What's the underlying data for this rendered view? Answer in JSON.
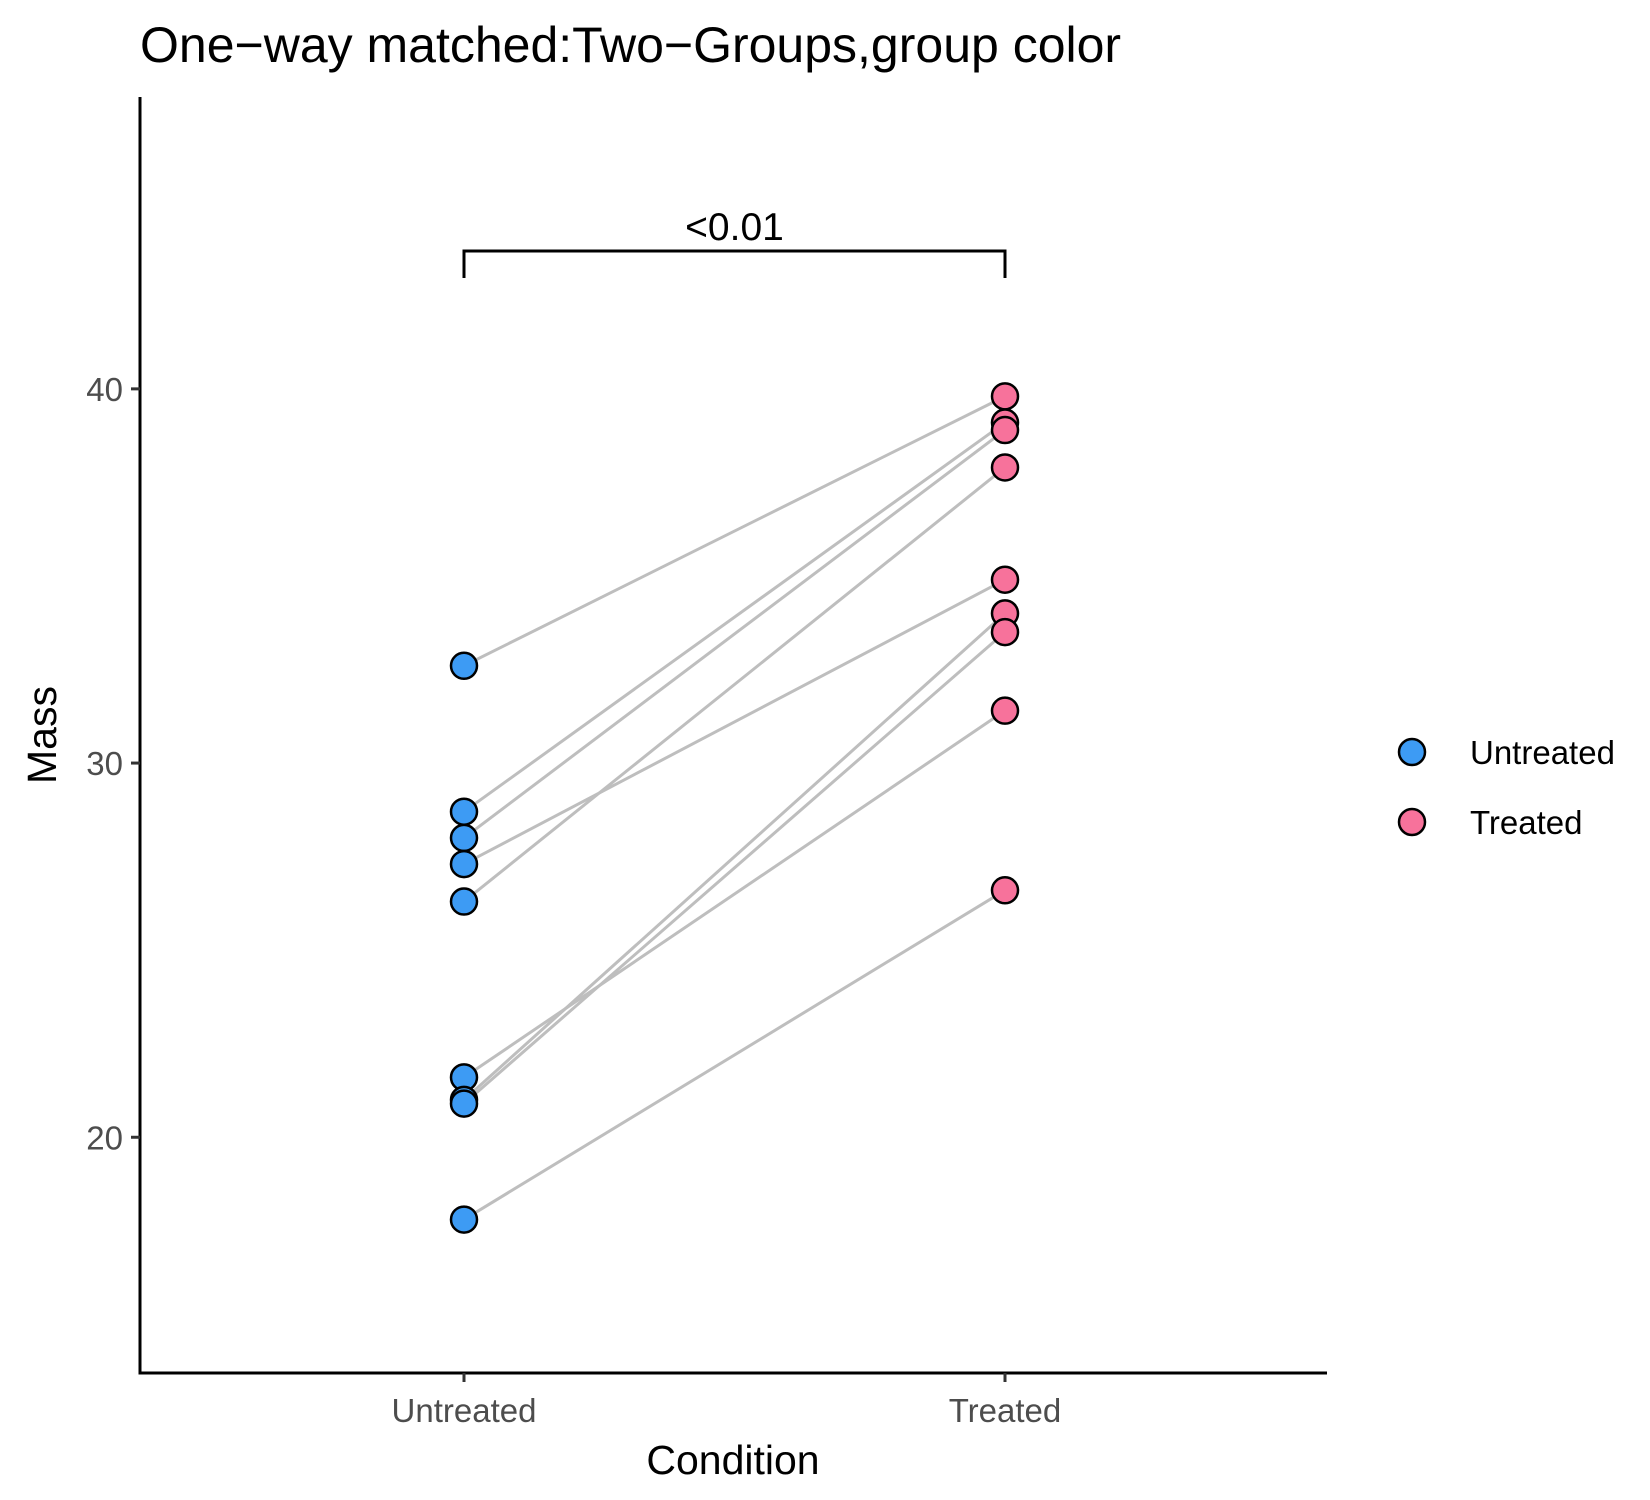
{
  "chart_data": {
    "type": "scatter",
    "title": "One−way matched:Two−Groups,group color",
    "xlabel": "Condition",
    "ylabel": "Mass",
    "categories": [
      "Untreated",
      "Treated"
    ],
    "ylim": [
      13.7,
      47.8
    ],
    "yticks": [
      20,
      30,
      40
    ],
    "grid": false,
    "legend_position": "right",
    "connector_color": "#bebebe",
    "series": [
      {
        "name": "Untreated",
        "color": "#3d9bf4",
        "values": [
          32.6,
          28.7,
          28.0,
          27.3,
          26.3,
          21.6,
          21.0,
          20.9,
          17.8
        ]
      },
      {
        "name": "Treated",
        "color": "#f7729b",
        "values": [
          39.8,
          39.1,
          38.9,
          37.9,
          34.9,
          34.0,
          33.5,
          31.4,
          26.6
        ]
      }
    ],
    "pairs": [
      [
        32.6,
        39.8
      ],
      [
        28.7,
        39.1
      ],
      [
        28.0,
        38.9
      ],
      [
        27.3,
        34.9
      ],
      [
        26.3,
        37.9
      ],
      [
        21.6,
        31.4
      ],
      [
        21.0,
        34.0
      ],
      [
        20.9,
        33.5
      ],
      [
        17.8,
        26.6
      ]
    ],
    "annotation": {
      "label": "<0.01",
      "from": "Untreated",
      "to": "Treated"
    }
  }
}
